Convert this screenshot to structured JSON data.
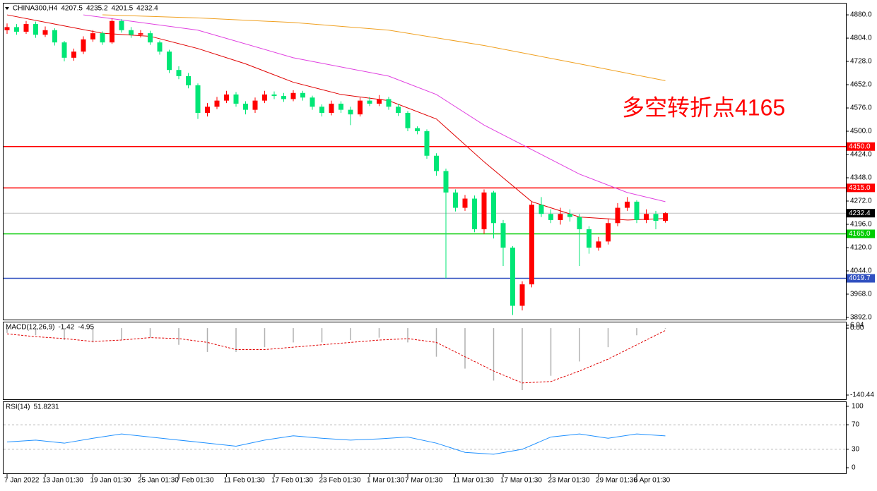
{
  "chart_data": {
    "type": "candlestick",
    "symbol": "CHINA300,H4",
    "annotation": "多空转折点4165",
    "annotation_color": "#ff0000",
    "up_color": "#ff0000",
    "down_color": "#00e676",
    "categories": [
      "7 Jan 2022",
      null,
      null,
      null,
      "13 Jan 01:30",
      null,
      null,
      null,
      null,
      "19 Jan 01:30",
      null,
      null,
      null,
      null,
      "25 Jan 01:30",
      null,
      null,
      null,
      "7 Feb 01:30",
      null,
      null,
      null,
      null,
      "11 Feb 01:30",
      null,
      null,
      null,
      null,
      "17 Feb 01:30",
      null,
      null,
      null,
      null,
      "23 Feb 01:30",
      null,
      null,
      null,
      null,
      "1 Mar 01:30",
      null,
      null,
      null,
      "7 Mar 01:30",
      null,
      null,
      null,
      null,
      "11 Mar 01:30",
      null,
      null,
      null,
      null,
      "17 Mar 01:30",
      null,
      null,
      null,
      null,
      "23 Mar 01:30",
      null,
      null,
      null,
      null,
      "29 Mar 01:30",
      null,
      null,
      null,
      "6 Apr 01:30",
      null,
      null,
      null
    ],
    "open": [
      4830,
      4840,
      4825,
      4850,
      4815,
      4830,
      4790,
      4740,
      4760,
      4800,
      4820,
      4790,
      4860,
      4830,
      4815,
      4820,
      4790,
      4760,
      4700,
      4680,
      4650,
      4560,
      4580,
      4600,
      4620,
      4590,
      4570,
      4600,
      4620,
      4615,
      4605,
      4625,
      4610,
      4580,
      4560,
      4590,
      4570,
      4555,
      4600,
      4590,
      4605,
      4580,
      4560,
      4510,
      4500,
      4420,
      4370,
      4300,
      4250,
      4280,
      4180,
      4300,
      4200,
      4120,
      3930,
      4000,
      4260,
      4230,
      4210,
      4230,
      4220,
      4180,
      4120,
      4140,
      4200,
      4250,
      4270,
      4210,
      4230,
      4207.5
    ],
    "high": [
      4852,
      4850,
      4860,
      4858,
      4842,
      4836,
      4795,
      4770,
      4810,
      4830,
      4826,
      4868,
      4866,
      4840,
      4830,
      4828,
      4796,
      4766,
      4712,
      4690,
      4656,
      4592,
      4612,
      4632,
      4628,
      4598,
      4610,
      4632,
      4630,
      4625,
      4634,
      4632,
      4616,
      4588,
      4600,
      4598,
      4580,
      4610,
      4612,
      4618,
      4612,
      4590,
      4566,
      4516,
      4506,
      4428,
      4378,
      4310,
      4292,
      4290,
      4310,
      4305,
      4210,
      4125,
      4010,
      4270,
      4285,
      4245,
      4250,
      4245,
      4230,
      4190,
      4155,
      4215,
      4265,
      4285,
      4275,
      4245,
      4240,
      4235.2
    ],
    "low": [
      4818,
      4815,
      4818,
      4805,
      4808,
      4780,
      4728,
      4730,
      4752,
      4792,
      4782,
      4785,
      4822,
      4805,
      4806,
      4782,
      4750,
      4690,
      4670,
      4640,
      4540,
      4548,
      4572,
      4592,
      4580,
      4555,
      4560,
      4592,
      4605,
      4596,
      4598,
      4600,
      4570,
      4548,
      4552,
      4560,
      4520,
      4548,
      4582,
      4582,
      4570,
      4550,
      4500,
      4490,
      4410,
      4355,
      4020,
      4238,
      4240,
      4170,
      4165,
      4150,
      4060,
      3900,
      3915,
      3990,
      4220,
      4200,
      4195,
      4205,
      4060,
      4100,
      4110,
      4130,
      4190,
      4240,
      4200,
      4200,
      4180,
      4201.5
    ],
    "close": [
      4840,
      4825,
      4850,
      4815,
      4830,
      4790,
      4740,
      4760,
      4800,
      4820,
      4790,
      4860,
      4830,
      4815,
      4820,
      4790,
      4760,
      4700,
      4680,
      4650,
      4560,
      4580,
      4600,
      4620,
      4590,
      4570,
      4600,
      4620,
      4615,
      4605,
      4625,
      4610,
      4580,
      4560,
      4590,
      4570,
      4555,
      4600,
      4590,
      4605,
      4580,
      4560,
      4510,
      4500,
      4420,
      4370,
      4300,
      4250,
      4280,
      4180,
      4300,
      4200,
      4120,
      3930,
      4000,
      4260,
      4230,
      4210,
      4230,
      4220,
      4180,
      4120,
      4140,
      4200,
      4250,
      4270,
      4210,
      4230,
      4207.5,
      4232.4
    ],
    "moving_averages": [
      {
        "color": "#e00000",
        "x": [
          0,
          5,
          10,
          15,
          20,
          25,
          30,
          35,
          40,
          45,
          50,
          55,
          60,
          65,
          69
        ],
        "values": [
          4880,
          4850,
          4820,
          4810,
          4770,
          4720,
          4660,
          4620,
          4600,
          4540,
          4400,
          4270,
          4220,
          4210,
          4215
        ]
      },
      {
        "color": "#e040e0",
        "x": [
          8,
          20,
          30,
          40,
          45,
          50,
          55,
          60,
          65,
          69
        ],
        "values": [
          4880,
          4830,
          4740,
          4680,
          4620,
          4520,
          4440,
          4360,
          4300,
          4270
        ]
      },
      {
        "color": "#f0a020",
        "x": [
          10,
          20,
          30,
          40,
          50,
          60,
          69
        ],
        "values": [
          4880,
          4870,
          4855,
          4830,
          4780,
          4720,
          4665
        ]
      }
    ],
    "levels": [
      {
        "value": 4450,
        "label": "4450.0",
        "color": "#ff0000"
      },
      {
        "value": 4315,
        "label": "4315.0",
        "color": "#ff0000"
      },
      {
        "value": 4165,
        "label": "4165.0",
        "color": "#00cc00"
      },
      {
        "value": 4019.7,
        "label": "4019.7",
        "color": "#3050c0"
      }
    ],
    "ylim": [
      3885,
      4917
    ],
    "yticks": [
      {
        "value": 4880,
        "label": "4880.0"
      },
      {
        "value": 4804,
        "label": "4804.0"
      },
      {
        "value": 4728,
        "label": "4728.0"
      },
      {
        "value": 4652,
        "label": "4652.0"
      },
      {
        "value": 4576,
        "label": "4576.0"
      },
      {
        "value": 4500,
        "label": "4500.0"
      },
      {
        "value": 4424,
        "label": "4424.0"
      },
      {
        "value": 4348,
        "label": "4348.0"
      },
      {
        "value": 4272,
        "label": "4272.0"
      },
      {
        "value": 4196,
        "label": "4196.0"
      },
      {
        "value": 4120,
        "label": "4120.0"
      },
      {
        "value": 4044,
        "label": "4044.0"
      },
      {
        "value": 3968,
        "label": "3968.0"
      },
      {
        "value": 3892,
        "label": "3892.0"
      }
    ],
    "macd": {
      "label": "MACD(12,26,9)",
      "x": [
        0,
        3,
        6,
        9,
        12,
        15,
        18,
        21,
        24,
        27,
        30,
        33,
        36,
        39,
        42,
        45,
        48,
        51,
        54,
        57,
        60,
        63,
        66,
        69
      ],
      "histogram": [
        -10,
        -15,
        -25,
        -30,
        -25,
        -20,
        -35,
        -50,
        -50,
        -40,
        -30,
        -30,
        -25,
        -20,
        -30,
        -60,
        -85,
        -110,
        -130,
        -100,
        -70,
        -40,
        -15,
        -1.42
      ],
      "signal": [
        -12,
        -18,
        -22,
        -28,
        -25,
        -20,
        -22,
        -30,
        -45,
        -45,
        -40,
        -35,
        -30,
        -25,
        -22,
        -30,
        -60,
        -90,
        -115,
        -112,
        -90,
        -65,
        -35,
        -4.95
      ],
      "histogram_color": "#b0b0b0",
      "signal_color": "#e00000",
      "ylim": [
        -149.3,
        12
      ],
      "yticks": [
        6.04,
        {
          "value": 0,
          "label": "0.00"
        },
        -140.44
      ]
    },
    "rsi": {
      "label": "RSI(14)",
      "x": [
        0,
        3,
        6,
        9,
        12,
        15,
        18,
        21,
        24,
        27,
        30,
        33,
        36,
        39,
        42,
        45,
        48,
        51,
        54,
        57,
        60,
        63,
        66,
        69
      ],
      "values": [
        42,
        45,
        40,
        48,
        55,
        50,
        45,
        40,
        35,
        45,
        52,
        48,
        45,
        47,
        50,
        40,
        25,
        22,
        30,
        50,
        55,
        48,
        55,
        51.8231
      ],
      "color": "#1e90ff",
      "ylim": [
        -9.2,
        108
      ],
      "yticks": [
        100,
        70,
        30,
        0
      ],
      "levels": [
        70,
        30
      ]
    }
  }
}
